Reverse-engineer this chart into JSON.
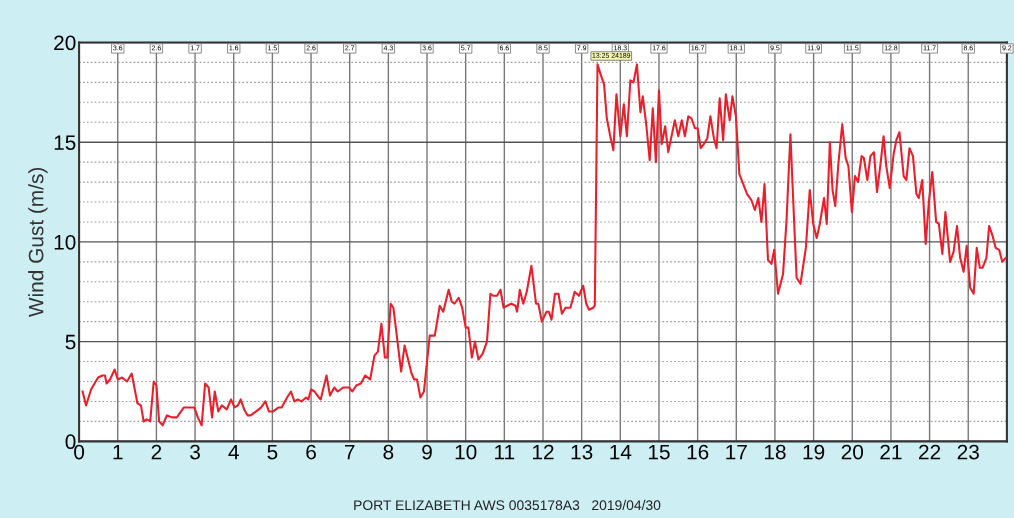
{
  "chart_data": {
    "type": "line",
    "ylabel": "Wind Gust (m/s)",
    "annotations": [
      {
        "text": "13:25 24189",
        "x": 13.41,
        "y": 18.88
      },
      "PORT ELIZABETH AWS 0035178A3   2019/04/30",
      "3.6",
      "2.6",
      "1.7",
      "1.6",
      "1.5",
      "2.6",
      "2.7",
      "4.3",
      "3.6",
      "5.7",
      "6.6",
      "8.5",
      "7.9",
      "18.3",
      "17.6",
      "16.7",
      "18.1",
      "9.5",
      "11.9",
      "11.5",
      "12.8",
      "11.7",
      "8.6",
      "9.2"
    ],
    "xlim": [
      0,
      24
    ],
    "xticks": [
      0,
      1,
      2,
      3,
      4,
      5,
      6,
      7,
      8,
      9,
      10,
      11,
      12,
      13,
      14,
      15,
      16,
      17,
      18,
      19,
      20,
      21,
      22,
      23
    ],
    "ylim": [
      0,
      20
    ],
    "yticks": [
      0,
      {
        "value": 1,
        "label": null
      },
      {
        "value": 2,
        "label": null
      },
      {
        "value": 3,
        "label": null
      },
      {
        "value": 4,
        "label": null
      },
      5,
      {
        "value": 6,
        "label": null
      },
      {
        "value": 7,
        "label": null
      },
      {
        "value": 8,
        "label": null
      },
      {
        "value": 9,
        "label": null
      },
      10,
      {
        "value": 11,
        "label": null
      },
      {
        "value": 12,
        "label": null
      },
      {
        "value": 13,
        "label": null
      },
      {
        "value": 14,
        "label": null
      },
      15,
      {
        "value": 16,
        "label": null
      },
      {
        "value": 17,
        "label": null
      },
      {
        "value": 18,
        "label": null
      },
      {
        "value": 19,
        "label": null
      },
      20
    ],
    "grid": true,
    "marker": "none",
    "line_style": "solid",
    "series": [
      {
        "color": "#e8202a",
        "x": [
          0.09,
          0.18,
          0.31,
          0.49,
          0.6,
          0.67,
          0.71,
          0.8,
          0.92,
          1.0,
          1.11,
          1.24,
          1.36,
          1.51,
          1.6,
          1.67,
          1.75,
          1.84,
          1.93,
          2.0,
          2.07,
          2.16,
          2.27,
          2.4,
          2.53,
          2.71,
          2.98,
          3.07,
          3.17,
          3.26,
          3.35,
          3.44,
          3.51,
          3.6,
          3.69,
          3.82,
          3.93,
          4.02,
          4.11,
          4.18,
          4.27,
          4.36,
          4.44,
          4.58,
          4.71,
          4.82,
          4.91,
          5.02,
          5.16,
          5.24,
          5.38,
          5.48,
          5.57,
          5.66,
          5.75,
          5.87,
          5.93,
          6.0,
          6.09,
          6.2,
          6.25,
          6.4,
          6.49,
          6.6,
          6.69,
          6.83,
          6.98,
          7.07,
          7.17,
          7.29,
          7.4,
          7.53,
          7.64,
          7.73,
          7.82,
          7.91,
          7.97,
          8.06,
          8.13,
          8.33,
          8.42,
          8.6,
          8.67,
          8.74,
          8.83,
          8.92,
          9.07,
          9.2,
          9.33,
          9.42,
          9.56,
          9.64,
          9.71,
          9.82,
          9.91,
          10.0,
          10.07,
          10.16,
          10.24,
          10.33,
          10.44,
          10.55,
          10.64,
          10.71,
          10.81,
          10.9,
          10.98,
          11.07,
          11.18,
          11.29,
          11.33,
          11.4,
          11.49,
          11.58,
          11.7,
          11.82,
          11.88,
          11.97,
          12.09,
          12.15,
          12.22,
          12.31,
          12.4,
          12.49,
          12.58,
          12.71,
          12.82,
          12.93,
          13.04,
          13.12,
          13.19,
          13.3,
          13.34,
          13.41,
          13.49,
          13.58,
          13.65,
          13.73,
          13.82,
          13.9,
          14.0,
          14.09,
          14.17,
          14.26,
          14.34,
          14.43,
          14.52,
          14.58,
          14.67,
          14.76,
          14.84,
          14.92,
          15.0,
          15.07,
          15.16,
          15.24,
          15.41,
          15.5,
          15.59,
          15.67,
          15.76,
          15.84,
          15.93,
          16.0,
          16.08,
          16.16,
          16.25,
          16.33,
          16.42,
          16.49,
          16.57,
          16.66,
          16.73,
          16.83,
          16.9,
          16.99,
          17.08,
          17.18,
          17.28,
          17.39,
          17.48,
          17.57,
          17.65,
          17.73,
          17.82,
          17.91,
          17.98,
          18.08,
          18.21,
          18.3,
          18.4,
          18.49,
          18.56,
          18.66,
          18.8,
          18.9,
          18.99,
          19.08,
          19.16,
          19.27,
          19.34,
          19.42,
          19.49,
          19.56,
          19.64,
          19.74,
          19.83,
          19.9,
          19.99,
          20.07,
          20.15,
          20.24,
          20.3,
          20.39,
          20.47,
          20.56,
          20.64,
          20.73,
          20.81,
          20.88,
          20.97,
          21.07,
          21.14,
          21.22,
          21.33,
          21.4,
          21.48,
          21.57,
          21.66,
          21.72,
          21.81,
          21.9,
          21.98,
          22.07,
          22.17,
          22.24,
          22.33,
          22.41,
          22.53,
          22.62,
          22.71,
          22.79,
          22.88,
          22.96,
          23.05,
          23.14,
          23.22,
          23.3,
          23.37,
          23.47,
          23.54,
          23.63,
          23.71,
          23.8,
          23.88,
          23.97
        ],
        "values": [
          2.5,
          1.8,
          2.6,
          3.2,
          3.3,
          3.3,
          2.9,
          3.1,
          3.6,
          3.1,
          3.2,
          3.0,
          3.4,
          1.9,
          1.8,
          1.0,
          1.1,
          1.0,
          3.0,
          2.8,
          1.0,
          0.8,
          1.3,
          1.2,
          1.2,
          1.7,
          1.7,
          1.2,
          0.8,
          2.9,
          2.7,
          1.2,
          2.5,
          1.5,
          1.8,
          1.6,
          2.1,
          1.7,
          1.8,
          2.1,
          1.6,
          1.3,
          1.3,
          1.5,
          1.7,
          2.0,
          1.5,
          1.5,
          1.7,
          1.7,
          2.2,
          2.5,
          2.0,
          2.1,
          2.0,
          2.2,
          2.1,
          2.6,
          2.5,
          2.2,
          2.1,
          3.3,
          2.3,
          2.7,
          2.5,
          2.7,
          2.7,
          2.5,
          2.8,
          2.9,
          3.3,
          3.1,
          4.3,
          4.5,
          5.9,
          4.2,
          4.2,
          6.9,
          6.7,
          3.5,
          4.8,
          3.4,
          3.1,
          3.1,
          2.2,
          2.5,
          5.3,
          5.3,
          6.8,
          6.5,
          7.6,
          7.0,
          6.9,
          7.2,
          6.7,
          5.7,
          5.7,
          4.2,
          5.0,
          4.1,
          4.4,
          5.0,
          7.4,
          7.3,
          7.3,
          7.6,
          6.7,
          6.8,
          6.9,
          6.8,
          6.5,
          7.6,
          6.9,
          7.5,
          8.8,
          6.9,
          6.9,
          6.0,
          6.5,
          6.5,
          6.1,
          7.4,
          7.4,
          6.4,
          6.7,
          6.7,
          7.5,
          7.3,
          7.8,
          6.9,
          6.6,
          6.7,
          6.8,
          18.9,
          18.4,
          17.9,
          16.2,
          15.4,
          14.6,
          17.4,
          15.3,
          16.9,
          15.3,
          18.1,
          18.0,
          18.9,
          16.5,
          17.3,
          15.9,
          14.1,
          16.7,
          14.0,
          17.6,
          14.9,
          15.8,
          14.5,
          16.1,
          15.3,
          16.1,
          15.3,
          16.3,
          16.2,
          15.7,
          15.7,
          14.7,
          14.9,
          15.2,
          16.3,
          15.2,
          14.7,
          17.2,
          15.1,
          17.4,
          16.1,
          17.3,
          16.3,
          13.4,
          12.9,
          12.4,
          12.1,
          11.6,
          12.2,
          11.0,
          12.9,
          9.1,
          8.9,
          9.6,
          7.4,
          8.4,
          11.1,
          15.4,
          11.3,
          8.2,
          7.9,
          9.7,
          12.6,
          10.9,
          10.2,
          10.9,
          12.2,
          10.9,
          15.0,
          12.6,
          11.8,
          13.9,
          15.9,
          14.2,
          13.8,
          11.5,
          13.3,
          13.0,
          14.3,
          14.2,
          13.1,
          14.3,
          14.5,
          12.5,
          13.9,
          15.3,
          13.8,
          12.7,
          14.4,
          15.1,
          15.5,
          13.3,
          13.1,
          14.7,
          14.3,
          12.4,
          12.2,
          13.1,
          9.9,
          12.0,
          13.5,
          11.0,
          10.9,
          9.4,
          11.5,
          9.0,
          9.5,
          10.8,
          9.2,
          8.5,
          9.8,
          7.7,
          7.4,
          9.7,
          8.7,
          8.7,
          9.2,
          10.8,
          10.3,
          9.7,
          9.6,
          9.0,
          9.2
        ]
      }
    ]
  }
}
